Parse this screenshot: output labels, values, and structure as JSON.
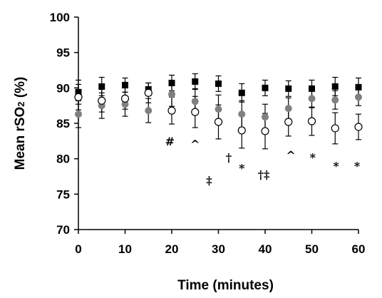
{
  "chart_data": {
    "type": "scatter",
    "xlabel": "Time (minutes)",
    "ylabel_prefix": "Mean rSO",
    "ylabel_sub": "2",
    "ylabel_suffix": " (%)",
    "xlim": [
      0,
      60
    ],
    "ylim": [
      70,
      100
    ],
    "xticks": [
      0,
      10,
      20,
      30,
      40,
      50,
      60
    ],
    "yticks": [
      70,
      75,
      80,
      85,
      90,
      95,
      100
    ],
    "grid": false,
    "series": [
      {
        "marker": "square-filled",
        "color": "#000000",
        "x": [
          0,
          5,
          10,
          15,
          20,
          25,
          30,
          35,
          40,
          45,
          50,
          55,
          60
        ],
        "y": [
          89.4,
          90.2,
          90.4,
          89.8,
          90.7,
          90.9,
          90.6,
          89.3,
          90.0,
          89.9,
          89.9,
          90.2,
          90.1
        ],
        "err": [
          1.7,
          1.3,
          1.0,
          0.9,
          1.1,
          1.1,
          1.1,
          1.3,
          1.1,
          1.1,
          1.2,
          1.3,
          1.3
        ]
      },
      {
        "marker": "circle-filled",
        "color": "#808080",
        "x": [
          0,
          5,
          10,
          15,
          20,
          25,
          30,
          35,
          40,
          45,
          50,
          55,
          60
        ],
        "y": [
          86.3,
          87.5,
          87.7,
          86.8,
          89.1,
          88.1,
          87.0,
          86.3,
          85.9,
          87.1,
          88.5,
          88.3,
          88.7
        ],
        "err": [
          1.9,
          1.8,
          1.7,
          1.7,
          1.7,
          1.8,
          2.0,
          1.9,
          1.8,
          1.5,
          1.3,
          1.3,
          1.2
        ]
      },
      {
        "marker": "circle-open",
        "color": "#000000",
        "x": [
          0,
          5,
          10,
          15,
          20,
          25,
          30,
          35,
          40,
          45,
          50,
          55,
          60
        ],
        "y": [
          88.7,
          88.2,
          88.5,
          89.3,
          86.8,
          86.6,
          85.2,
          84.0,
          83.9,
          85.2,
          85.3,
          84.3,
          84.5
        ],
        "err": [
          1.8,
          1.6,
          1.5,
          1.4,
          1.9,
          2.2,
          2.4,
          2.5,
          2.5,
          2.0,
          2.0,
          2.2,
          1.8
        ]
      }
    ],
    "annotations": [
      {
        "text": "#",
        "x": 19.6,
        "y": 81.9
      },
      {
        "text": "^",
        "x": 25.0,
        "y": 81.5
      },
      {
        "text": "†",
        "x": 32.2,
        "y": 79.6
      },
      {
        "text": "*",
        "x": 35.0,
        "y": 78.1
      },
      {
        "text": "‡",
        "x": 28.0,
        "y": 76.4
      },
      {
        "text": "†‡",
        "x": 39.7,
        "y": 77.2
      },
      {
        "text": "^",
        "x": 45.5,
        "y": 79.9
      },
      {
        "text": "*",
        "x": 50.2,
        "y": 79.6
      },
      {
        "text": "*",
        "x": 55.2,
        "y": 78.4
      },
      {
        "text": "*",
        "x": 59.7,
        "y": 78.4
      }
    ]
  }
}
